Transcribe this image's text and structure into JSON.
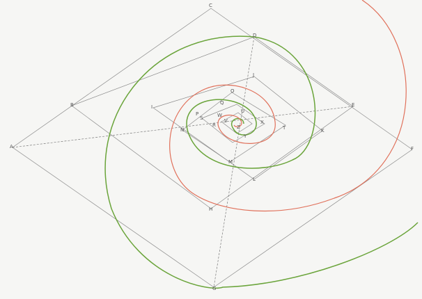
{
  "points": [
    {
      "label": "C"
    },
    {
      "label": "D"
    },
    {
      "label": "B"
    },
    {
      "label": "A"
    },
    {
      "label": "E"
    },
    {
      "label": "F"
    },
    {
      "label": "G"
    },
    {
      "label": "H"
    },
    {
      "label": "I"
    },
    {
      "label": "J"
    },
    {
      "label": "K"
    },
    {
      "label": "L"
    },
    {
      "label": "M"
    },
    {
      "label": "N"
    },
    {
      "label": "O"
    },
    {
      "label": "P"
    },
    {
      "label": "Q"
    },
    {
      "label": "R"
    },
    {
      "label": "S"
    },
    {
      "label": "T"
    },
    {
      "label": "U"
    },
    {
      "label": "V"
    },
    {
      "label": "W"
    },
    {
      "label": "X"
    },
    {
      "label": "Y"
    },
    {
      "label": "Z"
    }
  ]
}
